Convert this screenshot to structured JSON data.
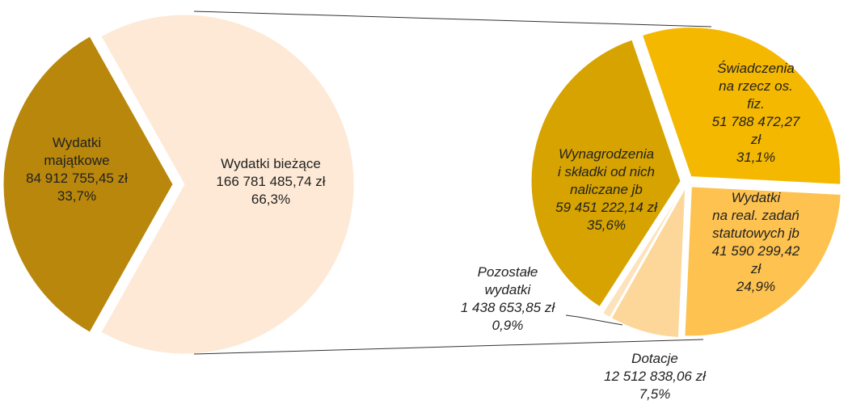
{
  "chart_data": [
    {
      "type": "pie",
      "categories": [
        "Wydatki\nmajątkowe",
        "Wydatki bieżące"
      ],
      "amounts": [
        "84 912 755,45 zł",
        "166 781 485,74 zł"
      ],
      "values": [
        33.7,
        66.3
      ],
      "value_labels": [
        "33,7%",
        "66,3%"
      ],
      "colors": [
        "#b8870b",
        "#fde9d5"
      ]
    },
    {
      "type": "pie",
      "categories": [
        "Świadczenia\nna rzecz os. fiz.",
        "Wydatki\nna real. zadań\nstatutowych jb",
        "Dotacje",
        "Pozostałe\nwydatki",
        "Wynagrodzenia\ni składki od nich\nnaliczane jb"
      ],
      "amounts": [
        "51 788 472,27 zł",
        "41 590 299,42 zł",
        "12 512 838,06 zł",
        "1 438 653,85 zł",
        "59 451 222,14 zł"
      ],
      "values": [
        31.1,
        24.9,
        7.5,
        0.9,
        35.6
      ],
      "value_labels": [
        "31,1%",
        "24,9%",
        "7,5%",
        "0,9%",
        "35,6%"
      ],
      "colors": [
        "#f5b800",
        "#fdc24f",
        "#fdd69a",
        "#fde3bc",
        "#d6a300"
      ]
    }
  ]
}
